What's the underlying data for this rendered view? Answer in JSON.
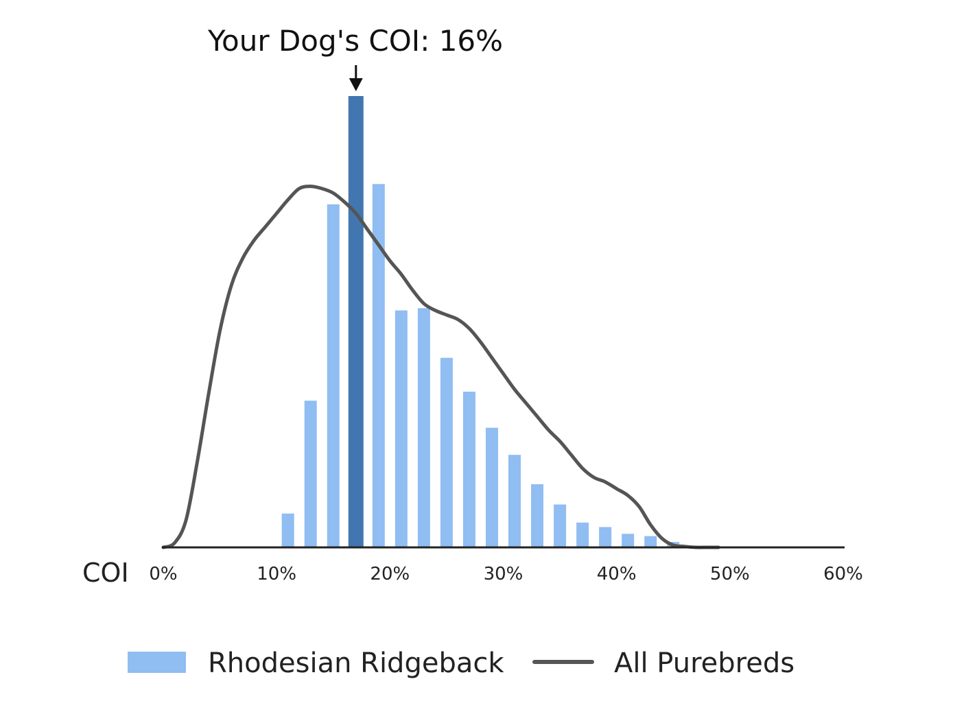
{
  "chart_data": {
    "type": "bar",
    "xlabel": "COI",
    "x_unit": "%",
    "xlim": [
      0,
      60
    ],
    "x_ticks": [
      "0%",
      "10%",
      "20%",
      "30%",
      "40%",
      "50%",
      "60%"
    ],
    "grid": false,
    "y_axis_visible": false,
    "annotation": {
      "text": "Your Dog's COI: 16%",
      "x": 17
    },
    "colors": {
      "bars": "#90bdf2",
      "highlight_bar": "#4176b0",
      "line": "#555555",
      "axis": "#222222"
    },
    "series": [
      {
        "name": "Rhodesian Ridgeback",
        "type": "bar",
        "x": [
          9,
          11,
          13,
          15,
          17,
          19,
          21,
          23,
          25,
          27,
          29,
          31,
          33,
          35,
          37,
          39,
          41,
          43,
          45,
          51
        ],
        "values": [
          0.1,
          7.5,
          32.5,
          76,
          100,
          80.5,
          52.5,
          53,
          42,
          34.5,
          26.5,
          20.5,
          14,
          9.5,
          5.5,
          4.5,
          3,
          2.5,
          1.2,
          0.2
        ],
        "highlight_x": 17
      },
      {
        "name": "All Purebreds",
        "type": "line",
        "x": [
          0,
          1,
          2,
          3,
          4,
          5,
          6,
          7,
          8,
          9,
          10,
          11,
          12,
          13,
          14,
          15,
          16,
          17,
          18,
          19,
          20,
          21,
          22,
          23,
          24,
          25,
          26,
          27,
          28,
          29,
          30,
          31,
          32,
          33,
          34,
          35,
          36,
          37,
          38,
          39,
          40,
          41,
          42,
          43,
          44,
          45,
          46,
          47,
          48,
          49
        ],
        "values": [
          0,
          1,
          6,
          19,
          34,
          48,
          58,
          64,
          68,
          71,
          74,
          77,
          79.5,
          80,
          79.5,
          78.5,
          76.5,
          74,
          70.5,
          67,
          63.5,
          60.5,
          57,
          54,
          52.5,
          51.5,
          50.5,
          48.5,
          45.5,
          42,
          38.5,
          35,
          32,
          29,
          26,
          23.5,
          20.5,
          17.5,
          15.5,
          14.5,
          13,
          11.5,
          9,
          5,
          2,
          0.5,
          0.2,
          0,
          0,
          0
        ]
      }
    ],
    "legend": {
      "placement": "bottom-center",
      "entries": [
        "Rhodesian Ridgeback",
        "All Purebreds"
      ]
    }
  }
}
